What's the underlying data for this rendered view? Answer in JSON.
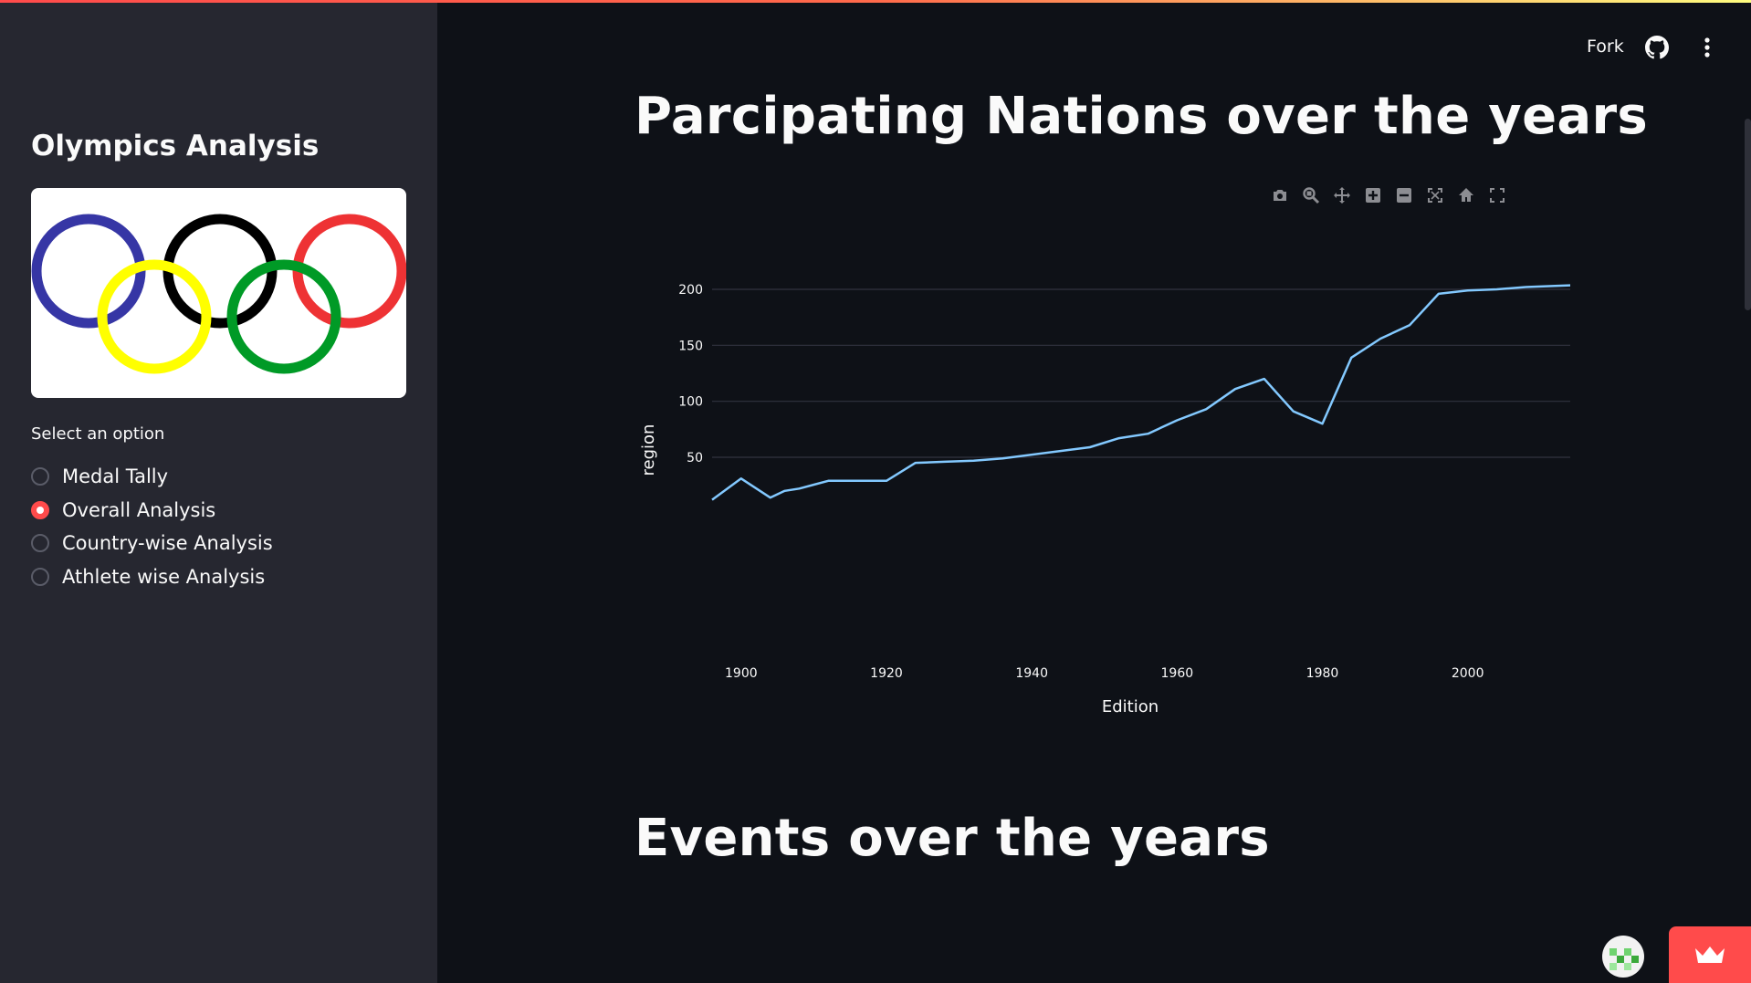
{
  "sidebar": {
    "title": "Olympics Analysis",
    "select_label": "Select an option",
    "options": [
      {
        "label": "Medal Tally",
        "selected": false
      },
      {
        "label": "Overall Analysis",
        "selected": true
      },
      {
        "label": "Country-wise Analysis",
        "selected": false
      },
      {
        "label": "Athlete wise Analysis",
        "selected": false
      }
    ],
    "logo_icon": "olympic-rings"
  },
  "header": {
    "fork_label": "Fork",
    "github_icon": "github-icon",
    "menu_icon": "kebab-menu-icon"
  },
  "main": {
    "heading_1": "Parcipating Nations over the years",
    "heading_2": "Events over the years"
  },
  "modebar": [
    "camera-icon",
    "zoom-icon",
    "pan-icon",
    "zoom-in-icon",
    "zoom-out-icon",
    "autoscale-icon",
    "home-icon",
    "fullscreen-icon"
  ],
  "colors": {
    "accent": "#ff4b4b",
    "line": "#83c9ff",
    "background": "#0e1117",
    "sidebar": "#262730"
  },
  "chart_data": {
    "type": "line",
    "xlabel": "Edition",
    "ylabel": "region",
    "xlim": [
      1896,
      2016
    ],
    "ylim": [
      0,
      210
    ],
    "xticks": [
      1900,
      1920,
      1940,
      1960,
      1980,
      2000
    ],
    "yticks": [
      50,
      100,
      150,
      200
    ],
    "grid": true,
    "x": [
      1896,
      1900,
      1904,
      1906,
      1908,
      1912,
      1920,
      1924,
      1928,
      1932,
      1936,
      1948,
      1952,
      1956,
      1960,
      1964,
      1968,
      1972,
      1976,
      1980,
      1984,
      1988,
      1992,
      1996,
      2000,
      2004,
      2008,
      2012,
      2016
    ],
    "y": [
      12,
      31,
      14,
      20,
      22,
      29,
      29,
      45,
      46,
      47,
      49,
      59,
      67,
      71,
      83,
      93,
      111,
      120,
      91,
      80,
      139,
      156,
      168,
      196,
      199,
      200,
      202,
      203,
      204
    ]
  }
}
